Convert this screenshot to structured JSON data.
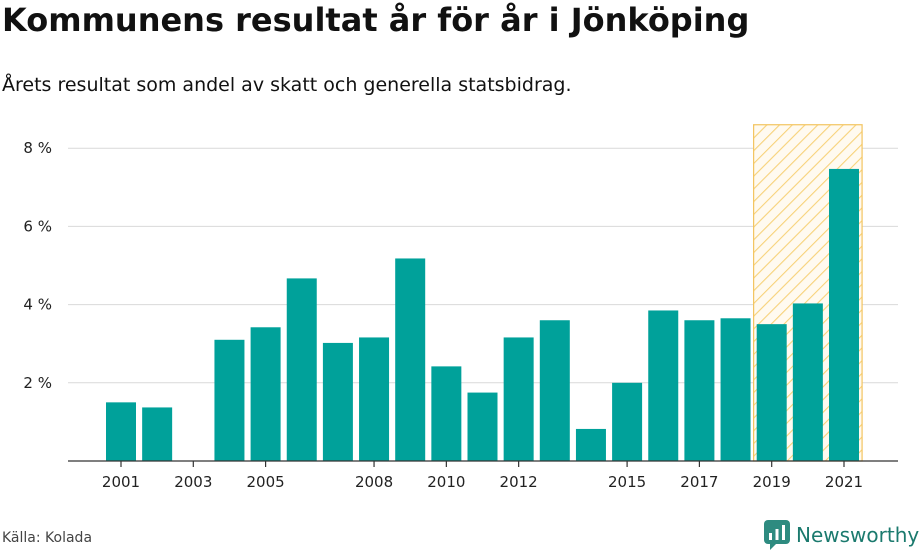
{
  "header": {
    "title": "Kommunens resultat år för år i Jönköping",
    "subtitle": "Årets resultat som andel av skatt och generella statsbidrag."
  },
  "footer": {
    "source": "Källa: Kolada",
    "brand": "Newsworthy"
  },
  "colors": {
    "bar": "#00a19a",
    "highlight_fill": "#fde9b5",
    "highlight_stroke": "#f3c45f",
    "grid": "#d9d9d9",
    "axis": "#333333",
    "brand": "#1b7a6e"
  },
  "chart_data": {
    "type": "bar",
    "categories": [
      "2001",
      "2002",
      "2003",
      "2004",
      "2005",
      "2006",
      "2007",
      "2008",
      "2009",
      "2010",
      "2011",
      "2012",
      "2013",
      "2014",
      "2015",
      "2016",
      "2017",
      "2018",
      "2019",
      "2020",
      "2021"
    ],
    "values": [
      1.5,
      1.37,
      0,
      3.1,
      3.42,
      4.67,
      3.02,
      3.16,
      5.18,
      2.42,
      1.75,
      3.16,
      3.6,
      0.82,
      2.0,
      3.85,
      3.6,
      3.65,
      3.5,
      4.03,
      7.47
    ],
    "x_tick_labels": [
      "2001",
      "2003",
      "2005",
      "2008",
      "2010",
      "2012",
      "2015",
      "2017",
      "2019",
      "2021"
    ],
    "y_ticks": [
      2,
      4,
      6,
      8
    ],
    "y_tick_labels": [
      "2 %",
      "4 %",
      "6 %",
      "8 %"
    ],
    "ylim": [
      0,
      8.6
    ],
    "grid": true,
    "highlight": {
      "from": "2019",
      "to": "2021",
      "pattern": "hatched"
    }
  }
}
